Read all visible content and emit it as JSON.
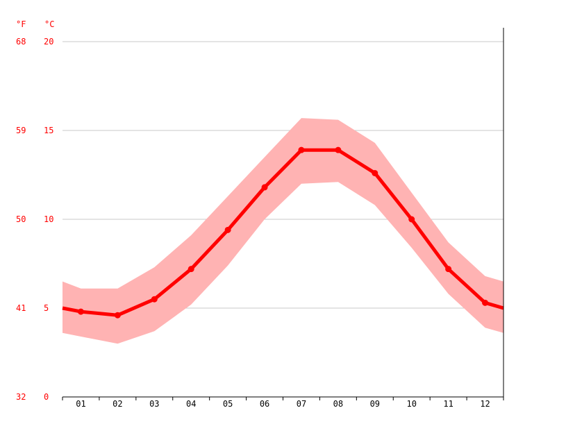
{
  "colors": {
    "line": "#ff0000",
    "band": "#ffb3b3",
    "grid": "#c8c8c8",
    "axis": "#000000",
    "label": "#ff0000"
  },
  "chart_data": {
    "type": "line",
    "title": "",
    "xlabel": "",
    "ylabel": "",
    "unit_left": "°F",
    "unit_right": "°C",
    "categories": [
      "01",
      "02",
      "03",
      "04",
      "05",
      "06",
      "07",
      "08",
      "09",
      "10",
      "11",
      "12"
    ],
    "ylim": [
      0,
      20
    ],
    "y_ticks_c": [
      "20",
      "15",
      "10",
      "5",
      "0"
    ],
    "y_ticks_f": [
      "68",
      "59",
      "50",
      "41",
      "32"
    ],
    "y_tick_values": [
      20,
      15,
      10,
      5,
      0
    ],
    "grid": true,
    "series": [
      {
        "values": [
          4.8,
          4.6,
          5.5,
          7.2,
          9.4,
          11.8,
          13.9,
          13.9,
          12.6,
          10.0,
          7.2,
          5.3
        ]
      }
    ],
    "edge_values": {
      "start": 5.0,
      "end": 5.0
    },
    "range": {
      "low": [
        3.4,
        3.0,
        3.7,
        5.2,
        7.4,
        10.0,
        12.0,
        12.1,
        10.8,
        8.4,
        5.8,
        3.9
      ],
      "high": [
        6.1,
        6.1,
        7.3,
        9.1,
        11.3,
        13.5,
        15.7,
        15.6,
        14.3,
        11.5,
        8.7,
        6.8
      ],
      "edge_low": {
        "start": 3.6,
        "end": 3.6
      },
      "edge_high": {
        "start": 6.5,
        "end": 6.5
      }
    }
  }
}
